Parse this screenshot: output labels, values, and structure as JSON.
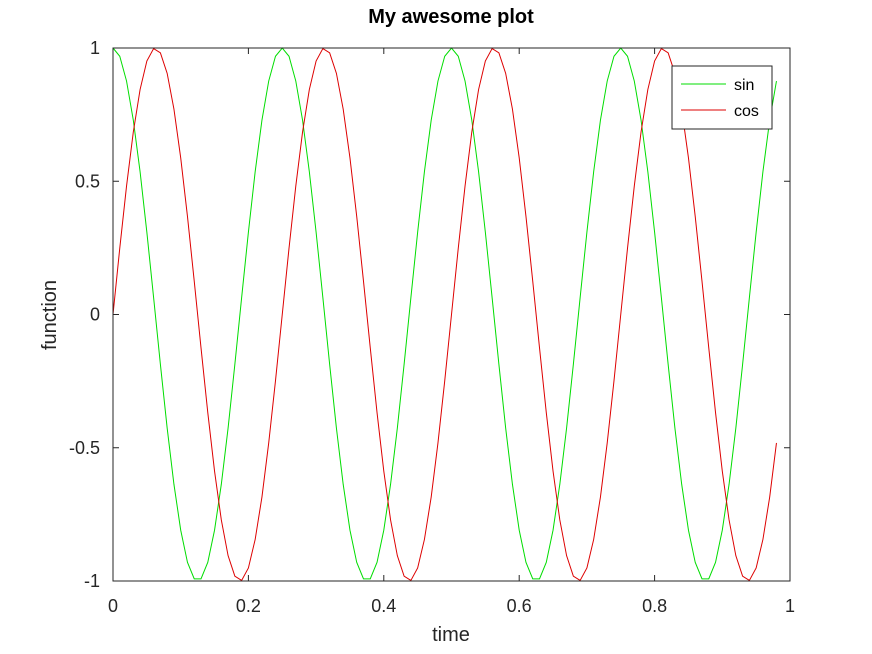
{
  "chart_data": {
    "type": "line",
    "title": "My awesome plot",
    "xlabel": "time",
    "ylabel": "function",
    "xlim": [
      0,
      1
    ],
    "ylim": [
      -1,
      1
    ],
    "grid": false,
    "legend_position": "top-right",
    "x_ticks": [
      {
        "value": 0,
        "label": "0"
      },
      {
        "value": 0.2,
        "label": "0.2"
      },
      {
        "value": 0.4,
        "label": "0.4"
      },
      {
        "value": 0.6,
        "label": "0.6"
      },
      {
        "value": 0.8,
        "label": "0.8"
      },
      {
        "value": 1,
        "label": "1"
      }
    ],
    "y_ticks": [
      {
        "value": -1,
        "label": "-1"
      },
      {
        "value": -0.5,
        "label": "-0.5"
      },
      {
        "value": 0,
        "label": "0"
      },
      {
        "value": 0.5,
        "label": "0.5"
      },
      {
        "value": 1,
        "label": "1"
      }
    ],
    "x": [
      0,
      0.01,
      0.02,
      0.03,
      0.04,
      0.05,
      0.06,
      0.07,
      0.08,
      0.09,
      0.1,
      0.11,
      0.12,
      0.13,
      0.14,
      0.15,
      0.16,
      0.17,
      0.18,
      0.19,
      0.2,
      0.21,
      0.22,
      0.23,
      0.24,
      0.25,
      0.26,
      0.27,
      0.28,
      0.29,
      0.3,
      0.31,
      0.32,
      0.33,
      0.34,
      0.35,
      0.36,
      0.37,
      0.38,
      0.39,
      0.4,
      0.41,
      0.42,
      0.43,
      0.44,
      0.45,
      0.46,
      0.47,
      0.48,
      0.49,
      0.5,
      0.51,
      0.52,
      0.53,
      0.54,
      0.55,
      0.56,
      0.57,
      0.58,
      0.59,
      0.6,
      0.61,
      0.62,
      0.63,
      0.64,
      0.65,
      0.66,
      0.67,
      0.68,
      0.69,
      0.7,
      0.71,
      0.72,
      0.73,
      0.74,
      0.75,
      0.76,
      0.77,
      0.78,
      0.79,
      0.8,
      0.81,
      0.82,
      0.83,
      0.84,
      0.85,
      0.86,
      0.87,
      0.88,
      0.89,
      0.9,
      0.91,
      0.92,
      0.93,
      0.94,
      0.95,
      0.96,
      0.97,
      0.98
    ],
    "series": [
      {
        "name": "sin",
        "color": "#00dd00",
        "values": [
          1,
          0.969,
          0.876,
          0.729,
          0.536,
          0.309,
          0.063,
          -0.187,
          -0.426,
          -0.637,
          -0.809,
          -0.93,
          -0.992,
          -0.992,
          -0.93,
          -0.809,
          -0.637,
          -0.426,
          -0.187,
          0.063,
          0.309,
          0.536,
          0.729,
          0.876,
          0.969,
          1,
          0.969,
          0.876,
          0.729,
          0.536,
          0.309,
          0.063,
          -0.187,
          -0.426,
          -0.637,
          -0.809,
          -0.93,
          -0.992,
          -0.992,
          -0.93,
          -0.809,
          -0.637,
          -0.426,
          -0.187,
          0.063,
          0.309,
          0.536,
          0.729,
          0.876,
          0.969,
          1,
          0.969,
          0.876,
          0.729,
          0.536,
          0.309,
          0.063,
          -0.187,
          -0.426,
          -0.637,
          -0.809,
          -0.93,
          -0.992,
          -0.992,
          -0.93,
          -0.809,
          -0.637,
          -0.426,
          -0.187,
          0.063,
          0.309,
          0.536,
          0.729,
          0.876,
          0.969,
          1,
          0.969,
          0.876,
          0.729,
          0.536,
          0.309,
          0.063,
          -0.187,
          -0.426,
          -0.637,
          -0.809,
          -0.93,
          -0.992,
          -0.992,
          -0.93,
          -0.809,
          -0.637,
          -0.426,
          -0.187,
          0.063,
          0.309,
          0.536,
          0.729,
          0.876
        ]
      },
      {
        "name": "cos",
        "color": "#dd0000",
        "values": [
          0,
          0.249,
          0.482,
          0.685,
          0.844,
          0.951,
          0.998,
          0.982,
          0.905,
          0.771,
          0.588,
          0.368,
          0.125,
          -0.125,
          -0.368,
          -0.588,
          -0.771,
          -0.905,
          -0.982,
          -0.998,
          -0.951,
          -0.844,
          -0.685,
          -0.482,
          -0.249,
          0,
          0.249,
          0.482,
          0.685,
          0.844,
          0.951,
          0.998,
          0.982,
          0.905,
          0.771,
          0.588,
          0.368,
          0.125,
          -0.125,
          -0.368,
          -0.588,
          -0.771,
          -0.905,
          -0.982,
          -0.998,
          -0.951,
          -0.844,
          -0.685,
          -0.482,
          -0.249,
          0,
          0.249,
          0.482,
          0.685,
          0.844,
          0.951,
          0.998,
          0.982,
          0.905,
          0.771,
          0.588,
          0.368,
          0.125,
          -0.125,
          -0.368,
          -0.588,
          -0.771,
          -0.905,
          -0.982,
          -0.998,
          -0.951,
          -0.844,
          -0.685,
          -0.482,
          -0.249,
          0,
          0.249,
          0.482,
          0.685,
          0.844,
          0.951,
          0.998,
          0.982,
          0.905,
          0.771,
          0.588,
          0.368,
          0.125,
          -0.125,
          -0.368,
          -0.588,
          -0.771,
          -0.905,
          -0.982,
          -0.998,
          -0.951,
          -0.844,
          -0.685,
          -0.482
        ]
      }
    ]
  }
}
